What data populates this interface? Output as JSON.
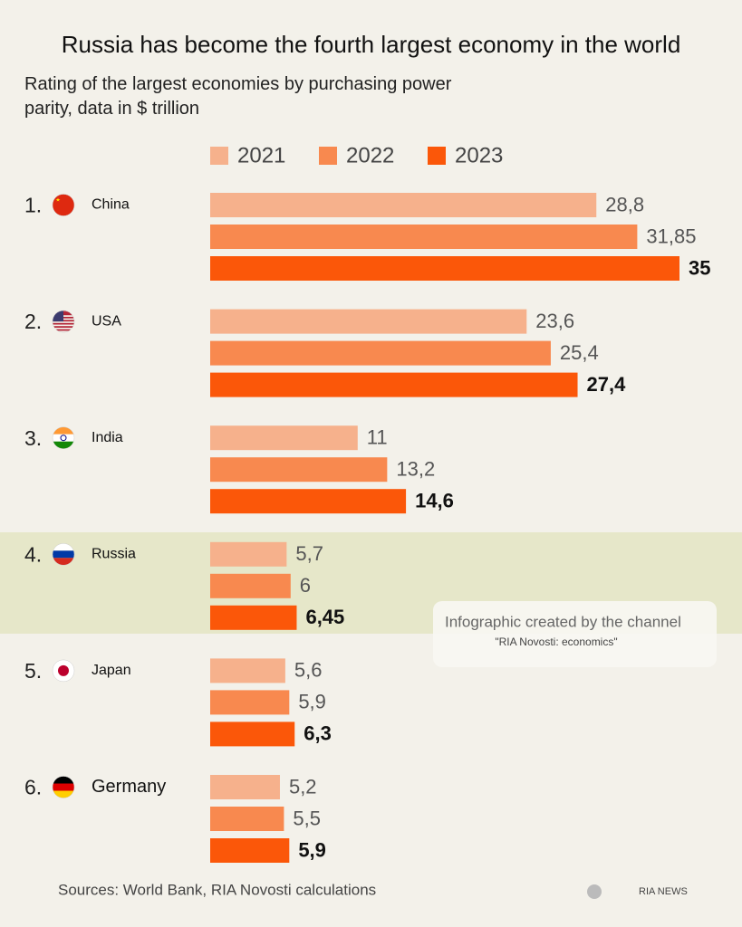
{
  "chart_data": {
    "type": "bar",
    "orientation": "horizontal",
    "title": "Russia has become the fourth largest economy in the world",
    "subtitle": "Rating of the largest economies by purchasing power parity, data in $ trillion",
    "ranks": [
      "1.",
      "2.",
      "3.",
      "4.",
      "5.",
      "6."
    ],
    "categories": [
      "China",
      "USA",
      "India",
      "Russia",
      "Japan",
      "Germany"
    ],
    "series": [
      {
        "name": "2021",
        "color": "#f6b18c",
        "values": [
          28.8,
          23.6,
          11,
          5.7,
          5.6,
          5.2
        ],
        "value_labels": [
          "28,8",
          "23,6",
          "11",
          "5,7",
          "5,6",
          "5,2"
        ]
      },
      {
        "name": "2022",
        "color": "#f8894f",
        "values": [
          31.85,
          25.4,
          13.2,
          6,
          5.9,
          5.5
        ],
        "value_labels": [
          "31,85",
          "25,4",
          "13,2",
          "6",
          "5,9",
          "5,5"
        ]
      },
      {
        "name": "2023",
        "color": "#fb5709",
        "values": [
          35,
          27.4,
          14.6,
          6.45,
          6.3,
          5.9
        ],
        "value_labels": [
          "35",
          "27,4",
          "14,6",
          "6,45",
          "6,3",
          "5,9"
        ]
      }
    ],
    "highlight": "Russia",
    "annotation": [
      "Infographic created by the channel",
      "\"RIA Novosti: economics\""
    ],
    "source": "Sources: World Bank, RIA Novosti calculations",
    "logo": "RIA NEWS"
  }
}
